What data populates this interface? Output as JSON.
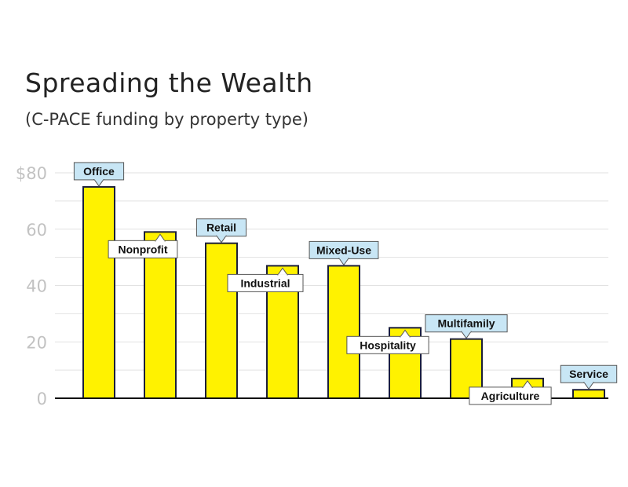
{
  "chart_data": {
    "type": "bar",
    "title": "Spreading the Wealth",
    "subtitle": "(C-PACE funding by property type)",
    "categories": [
      "Office",
      "Nonprofit",
      "Retail",
      "Industrial",
      "Mixed-Use",
      "Hospitality",
      "Multifamily",
      "Agriculture",
      "Service"
    ],
    "values": [
      75,
      59,
      55,
      47,
      47,
      25,
      21,
      7,
      3
    ],
    "label_style": [
      "highlight",
      "plain",
      "highlight",
      "plain",
      "highlight",
      "plain",
      "highlight",
      "plain",
      "highlight"
    ],
    "yticks": [
      "0",
      "20",
      "40",
      "60",
      "$80"
    ],
    "ylim": [
      0,
      80
    ],
    "grid": true,
    "colors": {
      "bar": "#fff200",
      "bar_outline": "#1c1f3a",
      "grid": "#e2e2e2",
      "axis": "#111111",
      "highlight_label_bg": "#c8e6f5",
      "plain_label_bg": "#ffffff"
    }
  }
}
